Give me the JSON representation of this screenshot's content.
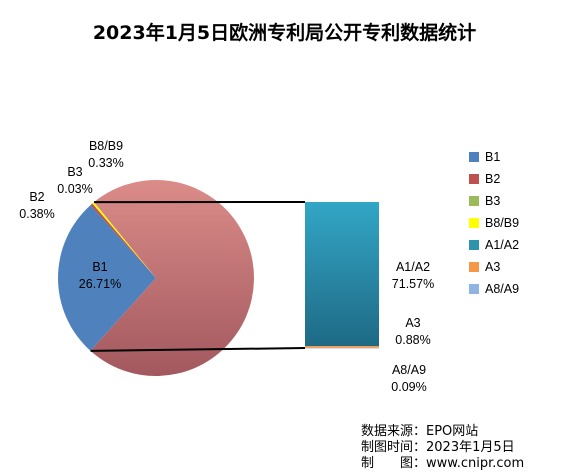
{
  "chart_data": {
    "type": "pie",
    "title": "2023年1月5日欧洲专利局公开专利数据统计",
    "slices": [
      {
        "name": "B1",
        "label": "B1",
        "value": 26.71,
        "pct": "26.71%",
        "color": "#4f81bd"
      },
      {
        "name": "B2",
        "label": "B2",
        "value": 0.38,
        "pct": "0.38%",
        "color": "#c0504d"
      },
      {
        "name": "B3",
        "label": "B3",
        "value": 0.03,
        "pct": "0.03%",
        "color": "#9bbb59"
      },
      {
        "name": "B8/B9",
        "label": "B8/B9",
        "value": 0.33,
        "pct": "0.33%",
        "color": "#ffff00"
      },
      {
        "name": "A1/A2",
        "label": "A1/A2",
        "value": 71.57,
        "pct": "71.57%",
        "color": "#2e93ad"
      },
      {
        "name": "A3",
        "label": "A3",
        "value": 0.88,
        "pct": "0.88%",
        "color": "#f79646"
      },
      {
        "name": "A8/A9",
        "label": "A8/A9",
        "value": 0.09,
        "pct": "0.09%",
        "color": "#8eb4e3"
      }
    ],
    "pie_other_color": "#d98a88",
    "legend_position": "right"
  },
  "legend": [
    {
      "label": "B1",
      "color": "#4f81bd"
    },
    {
      "label": "B2",
      "color": "#c0504d"
    },
    {
      "label": "B3",
      "color": "#9bbb59"
    },
    {
      "label": "B8/B9",
      "color": "#ffff00"
    },
    {
      "label": "A1/A2",
      "color": "#2e93ad"
    },
    {
      "label": "A3",
      "color": "#f79646"
    },
    {
      "label": "A8/A9",
      "color": "#8eb4e3"
    }
  ],
  "source": {
    "line1": "数据来源：EPO网站",
    "line2": "制图时间：2023年1月5日",
    "line3": "制　　图：www.cnipr.com"
  }
}
